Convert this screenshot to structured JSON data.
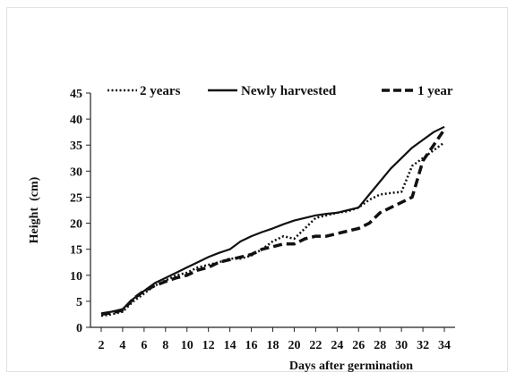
{
  "chart_data": {
    "type": "line",
    "title": "",
    "xlabel": "Days after germination",
    "ylabel": "Height  (cm)",
    "xlim": [
      1,
      35
    ],
    "ylim": [
      0,
      45
    ],
    "x_ticks": [
      2,
      4,
      6,
      8,
      10,
      12,
      14,
      16,
      18,
      20,
      22,
      24,
      26,
      28,
      30,
      32,
      34
    ],
    "y_ticks": [
      0,
      5,
      10,
      15,
      20,
      25,
      30,
      35,
      40,
      45
    ],
    "grid": false,
    "legend_position": "top",
    "x": [
      2,
      3,
      4,
      5,
      6,
      7,
      8,
      9,
      10,
      11,
      12,
      13,
      14,
      15,
      16,
      17,
      18,
      19,
      20,
      21,
      22,
      23,
      24,
      25,
      26,
      27,
      28,
      29,
      30,
      31,
      32,
      33,
      34
    ],
    "series": [
      {
        "name": "2 years",
        "style": "dotted",
        "color": "#111111",
        "values": [
          2.2,
          2.5,
          3.0,
          5.0,
          6.5,
          8.0,
          9.0,
          10.0,
          10.5,
          11.5,
          12.0,
          12.5,
          13.2,
          13.2,
          13.8,
          15.0,
          16.5,
          17.5,
          17.0,
          19.0,
          21.0,
          21.5,
          22.0,
          22.3,
          23.0,
          24.5,
          25.5,
          25.8,
          26.0,
          31.0,
          32.5,
          34.0,
          35.5
        ]
      },
      {
        "name": "Newly harvested",
        "style": "solid",
        "color": "#111111",
        "values": [
          2.7,
          3.0,
          3.5,
          5.5,
          7.0,
          8.5,
          9.5,
          10.5,
          11.5,
          12.5,
          13.5,
          14.3,
          15.0,
          16.5,
          17.5,
          18.3,
          19.0,
          19.8,
          20.5,
          21.0,
          21.5,
          21.8,
          22.0,
          22.5,
          23.0,
          25.5,
          28.0,
          30.5,
          32.5,
          34.5,
          36.0,
          37.5,
          38.5
        ]
      },
      {
        "name": "1 year",
        "style": "dashed",
        "color": "#111111",
        "values": [
          2.5,
          2.8,
          3.3,
          5.5,
          7.0,
          8.0,
          8.8,
          9.5,
          10.0,
          11.0,
          11.5,
          12.5,
          13.0,
          13.5,
          14.0,
          15.0,
          15.5,
          16.0,
          16.0,
          17.0,
          17.5,
          17.5,
          18.0,
          18.5,
          19.0,
          20.0,
          22.0,
          23.0,
          24.0,
          25.0,
          32.0,
          35.0,
          38.0
        ]
      }
    ]
  }
}
